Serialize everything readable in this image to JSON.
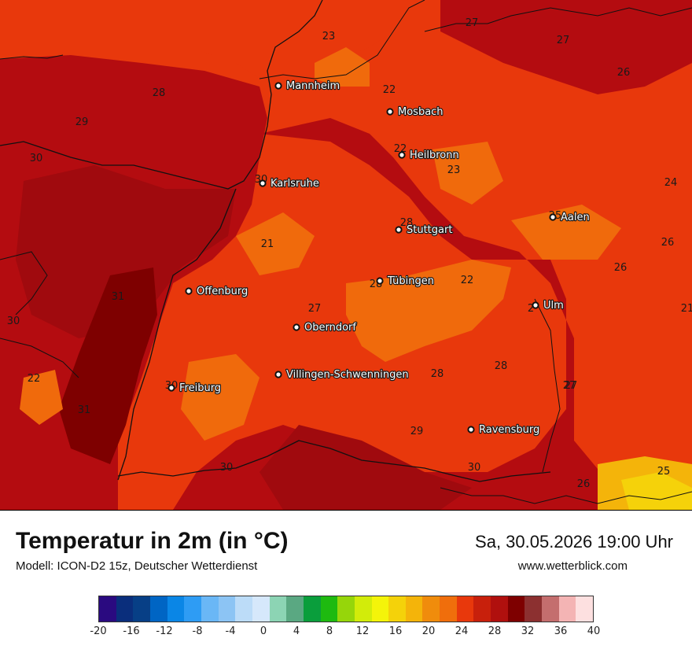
{
  "map": {
    "cities": [
      {
        "name": "Mannheim"
      },
      {
        "name": "Mosbach"
      },
      {
        "name": "Heilbronn"
      },
      {
        "name": "Karlsruhe"
      },
      {
        "name": "Stuttgart"
      },
      {
        "name": "Aalen"
      },
      {
        "name": "Tübingen"
      },
      {
        "name": "Offenburg"
      },
      {
        "name": "Oberndorf"
      },
      {
        "name": "Ulm"
      },
      {
        "name": "Villingen-Schwenningen"
      },
      {
        "name": "Freiburg"
      },
      {
        "name": "Ravensburg"
      }
    ],
    "values": [
      "27",
      "23",
      "27",
      "26",
      "28",
      "22",
      "29",
      "30",
      "30",
      "23",
      "24",
      "22",
      "28",
      "25",
      "26",
      "26",
      "31",
      "28",
      "22",
      "30",
      "27",
      "27",
      "22",
      "28",
      "28",
      "27",
      "31",
      "29",
      "30",
      "30",
      "26",
      "25",
      "30",
      "21",
      "21",
      "2"
    ],
    "colors": {
      "hot_dark": "#7e0000",
      "hot": "#b40c10",
      "warm": "#e8380c",
      "mild": "#f06a0c",
      "yellow": "#f5d20a"
    }
  },
  "footer": {
    "title": "Temperatur in 2m (in °C)",
    "subtitle": "Modell: ICON-D2 15z, Deutscher Wetterdienst",
    "datetime": "Sa, 30.05.2026 19:00 Uhr",
    "website": "www.wetterblick.com"
  },
  "legend": {
    "ticks": [
      "-20",
      "-16",
      "-12",
      "-8",
      "-4",
      "0",
      "4",
      "8",
      "12",
      "16",
      "20",
      "24",
      "28",
      "32",
      "36",
      "40"
    ],
    "colors": [
      "#2a0a80",
      "#0a2e7c",
      "#073f86",
      "#0065c4",
      "#0a86e6",
      "#2e9cf4",
      "#6ab7f6",
      "#8cc4f4",
      "#bcdcf8",
      "#d6e8fb",
      "#8cd4b4",
      "#5aa882",
      "#0a9e3c",
      "#1eba10",
      "#96d60a",
      "#d2ec0a",
      "#f4f40a",
      "#f4d20a",
      "#f4b40a",
      "#f08c0c",
      "#f06e0c",
      "#e8380c",
      "#c8200c",
      "#b0100e",
      "#7e0000",
      "#8c3030",
      "#c46e6e",
      "#f4b4b4",
      "#fde0e0"
    ]
  }
}
